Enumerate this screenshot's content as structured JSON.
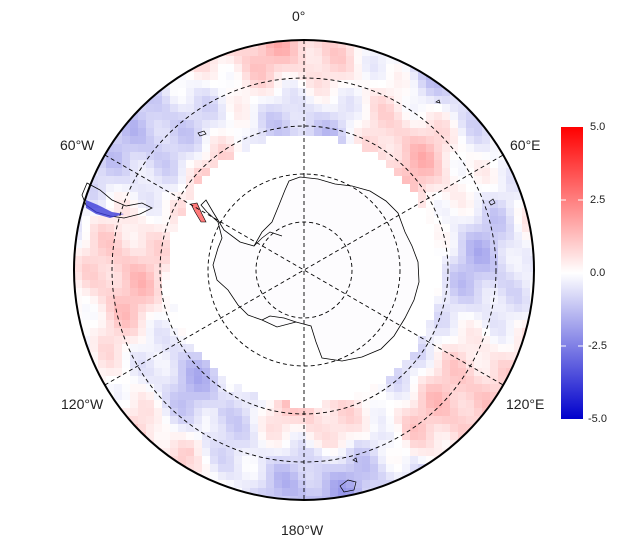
{
  "map": {
    "projection": "south-polar-stereographic",
    "longitude_labels": {
      "top": "0°",
      "upper_left": "60°W",
      "upper_right": "60°E",
      "lower_left": "120°W",
      "lower_right": "120°E",
      "bottom": "180°W"
    }
  },
  "colorbar": {
    "min": -5.0,
    "max": 5.0,
    "colors": {
      "low": "#0000cc",
      "mid": "#ffffff",
      "high": "#ff0000"
    },
    "ticks": [
      "5.0",
      "2.5",
      "0.0",
      "-2.5",
      "-5.0"
    ]
  }
}
